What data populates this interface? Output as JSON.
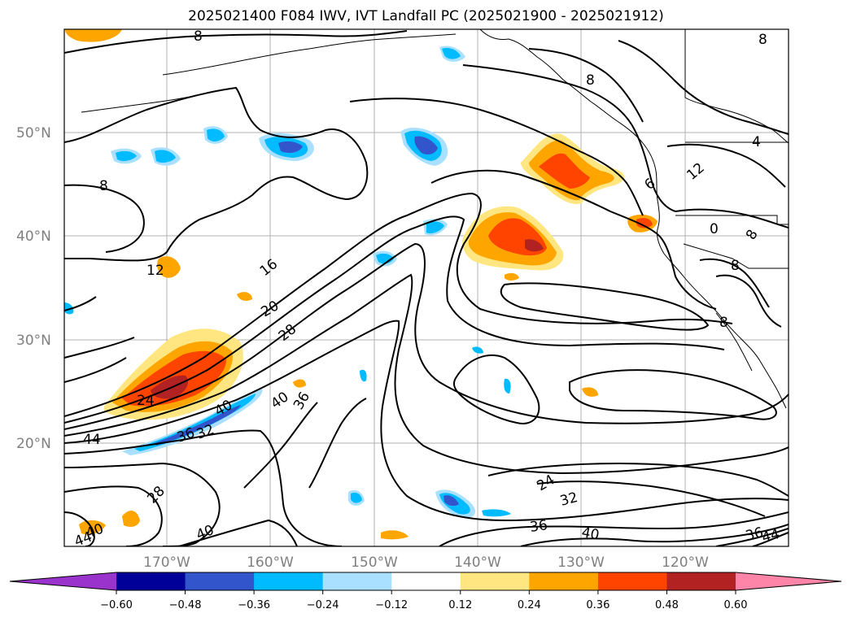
{
  "title": "2025021400 F084 IWV, IVT Landfall PC (2025021900 - 2025021912)",
  "lat_labels": [
    "50°N",
    "40°N",
    "30°N",
    "20°N"
  ],
  "lon_labels": [
    "170°W",
    "160°W",
    "150°W",
    "140°W",
    "130°W",
    "120°W"
  ],
  "colorbar": {
    "ticks": [
      "−0.60",
      "−0.48",
      "−0.36",
      "−0.24",
      "−0.12",
      "0.12",
      "0.24",
      "0.36",
      "0.48",
      "0.60"
    ],
    "colors": [
      "#9933cc",
      "#000099",
      "#3355cc",
      "#00bbff",
      "#aae0ff",
      "#ffffff",
      "#ffe680",
      "#ffa500",
      "#ff4400",
      "#b22222",
      "#ff85a8"
    ]
  },
  "contour_labels": [
    "8",
    "8",
    "12",
    "16",
    "20",
    "28",
    "24",
    "40",
    "36",
    "44",
    "36",
    "32",
    "40",
    "28",
    "40",
    "44",
    "40",
    "24",
    "32",
    "36",
    "40",
    "36",
    "44",
    "8",
    "4",
    "12",
    "6",
    "8",
    "0",
    "8",
    "8",
    "8"
  ]
}
